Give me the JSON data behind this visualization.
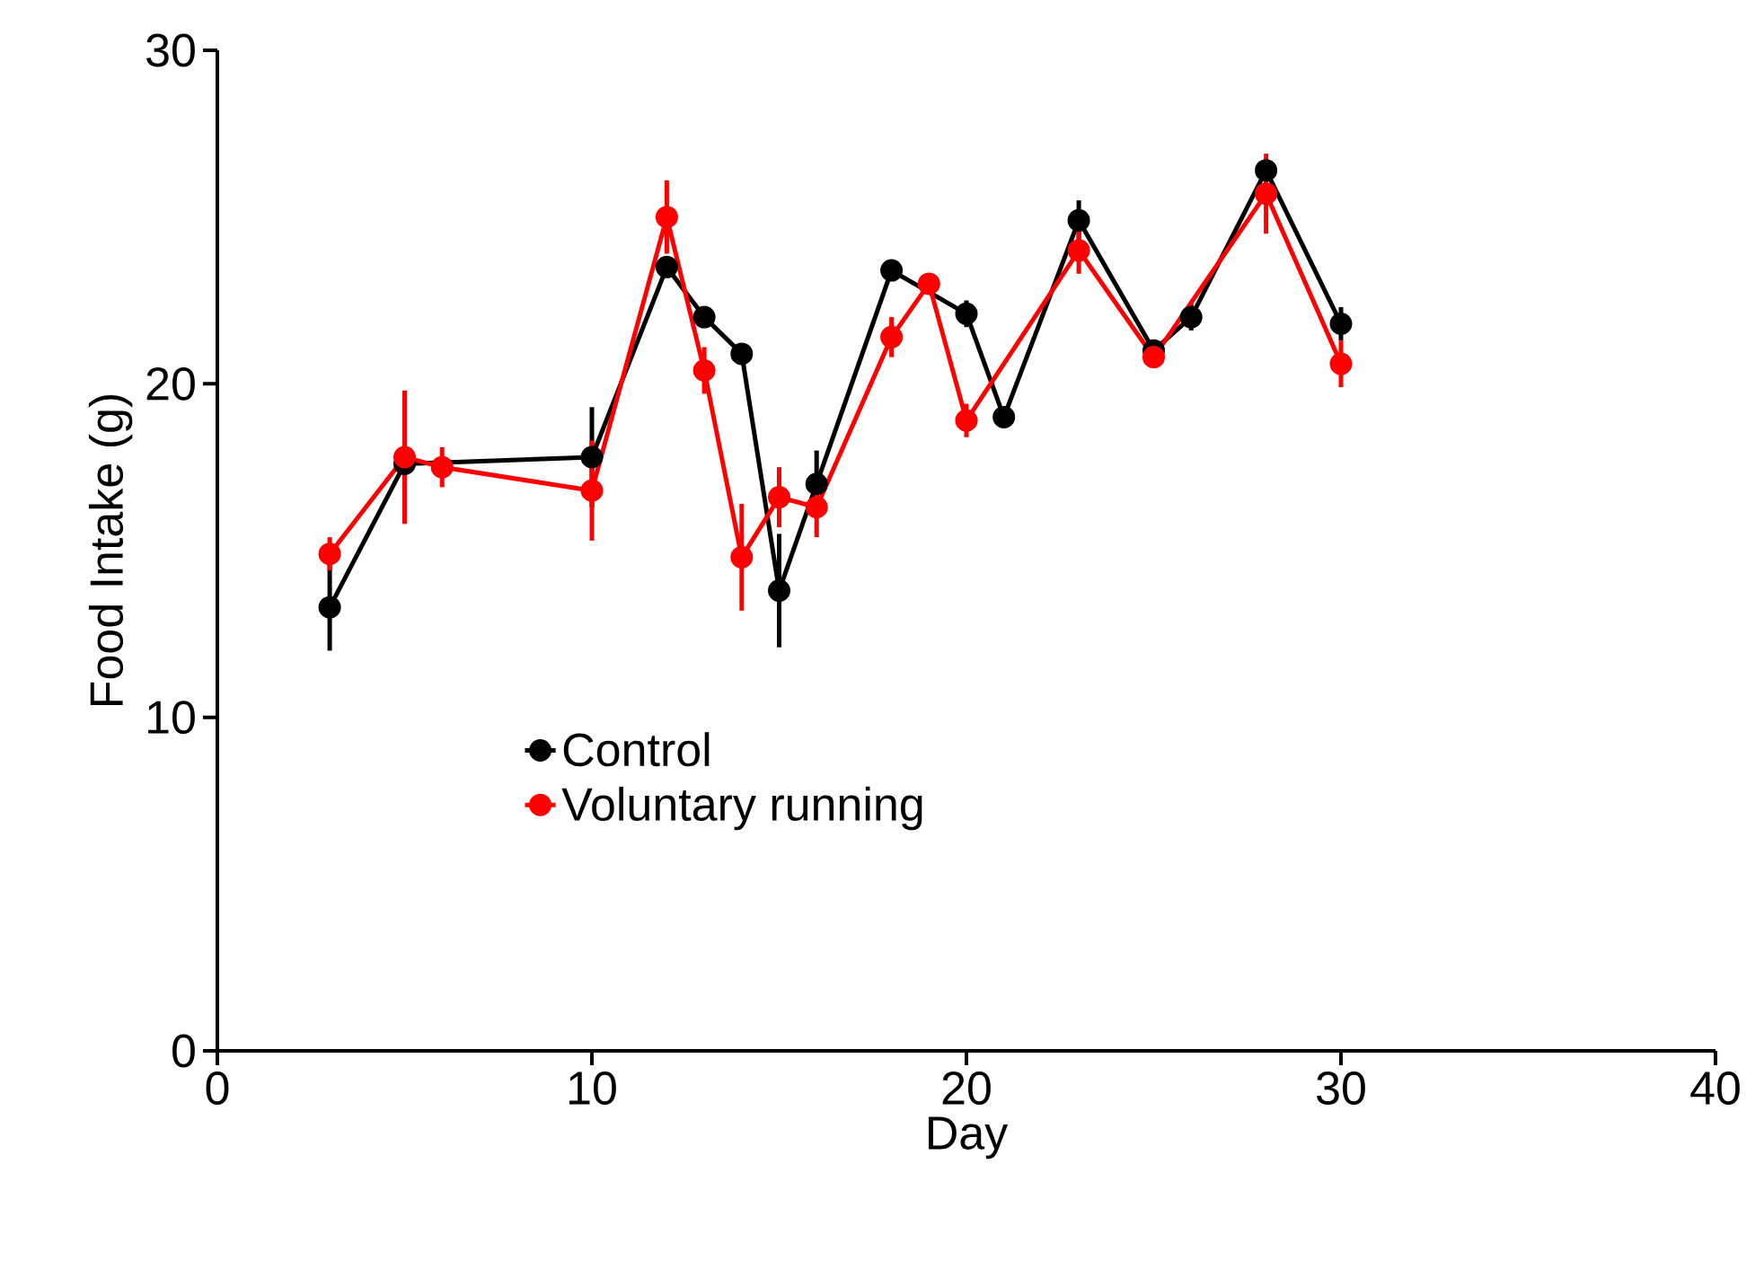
{
  "chart_data": {
    "type": "line",
    "xlabel": "Day",
    "ylabel": "Food Intake (g)",
    "xlim": [
      0,
      40
    ],
    "ylim": [
      0,
      30
    ],
    "xticks": [
      0,
      10,
      20,
      30,
      40
    ],
    "yticks": [
      0,
      10,
      20,
      30
    ],
    "marker": "circle",
    "legend": "bottom left",
    "grid": false,
    "series": [
      {
        "name": "Control",
        "color": "#000000",
        "x": [
          3,
          5,
          10,
          12,
          13,
          14,
          15,
          16,
          18,
          20,
          21,
          23,
          25,
          26,
          28,
          30
        ],
        "values": [
          13.3,
          17.6,
          17.8,
          23.5,
          22.0,
          20.9,
          13.8,
          17.0,
          23.4,
          22.1,
          19.0,
          24.9,
          21.0,
          22.0,
          26.4,
          21.8
        ],
        "errors": [
          1.3,
          null,
          1.5,
          null,
          0.3,
          0.3,
          1.7,
          1.0,
          0.3,
          0.4,
          0.3,
          0.6,
          null,
          0.4,
          null,
          0.5
        ]
      },
      {
        "name": "Voluntary running",
        "color": "#ff0000",
        "x": [
          3,
          5,
          6,
          10,
          12,
          13,
          14,
          15,
          16,
          18,
          19,
          20,
          23,
          25,
          28,
          30
        ],
        "values": [
          14.9,
          17.8,
          17.5,
          16.8,
          25.0,
          20.4,
          14.8,
          16.6,
          16.3,
          21.4,
          23.0,
          18.9,
          24.0,
          20.8,
          25.7,
          20.6
        ],
        "errors": [
          0.5,
          2.0,
          0.6,
          1.5,
          1.1,
          0.7,
          1.6,
          0.9,
          0.9,
          0.6,
          0.3,
          0.5,
          0.7,
          0.3,
          1.2,
          0.7
        ]
      }
    ]
  }
}
